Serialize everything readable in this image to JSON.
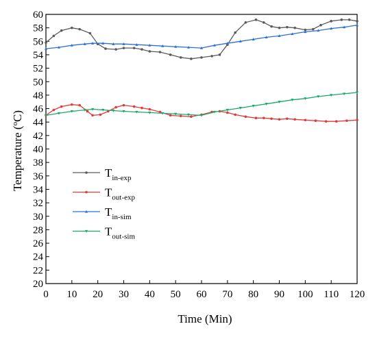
{
  "chart_data": {
    "type": "line",
    "xlabel": "Time (Min)",
    "ylabel": "Temperature (",
    "ylabel_sup": "o",
    "ylabel_unit": "C)",
    "xlim": [
      0,
      120
    ],
    "ylim": [
      20,
      60
    ],
    "x_ticks": [
      0,
      10,
      20,
      30,
      40,
      50,
      60,
      70,
      80,
      90,
      100,
      110,
      120
    ],
    "y_ticks": [
      20,
      22,
      24,
      26,
      28,
      30,
      32,
      34,
      36,
      38,
      40,
      42,
      44,
      46,
      48,
      50,
      52,
      54,
      56,
      58,
      60
    ],
    "grid": false,
    "legend_position": "center-left",
    "series": [
      {
        "name": "T",
        "subscript": "in-exp",
        "color": "#5a5a5a",
        "marker": "dot",
        "points": [
          [
            0,
            55.8
          ],
          [
            3,
            56.8
          ],
          [
            6,
            57.6
          ],
          [
            10,
            58.0
          ],
          [
            13,
            57.8
          ],
          [
            17,
            57.2
          ],
          [
            20,
            55.6
          ],
          [
            23,
            54.9
          ],
          [
            27,
            54.8
          ],
          [
            30,
            55.0
          ],
          [
            34,
            55.0
          ],
          [
            37,
            54.8
          ],
          [
            40,
            54.5
          ],
          [
            44,
            54.4
          ],
          [
            48,
            54.0
          ],
          [
            52,
            53.6
          ],
          [
            56,
            53.4
          ],
          [
            60,
            53.6
          ],
          [
            64,
            53.8
          ],
          [
            67,
            54.0
          ],
          [
            70,
            55.5
          ],
          [
            73,
            57.3
          ],
          [
            77,
            58.8
          ],
          [
            81,
            59.2
          ],
          [
            84,
            58.8
          ],
          [
            87,
            58.2
          ],
          [
            90,
            58.0
          ],
          [
            93,
            58.1
          ],
          [
            96,
            58.0
          ],
          [
            100,
            57.7
          ],
          [
            103,
            57.8
          ],
          [
            106,
            58.4
          ],
          [
            110,
            59.0
          ],
          [
            114,
            59.2
          ],
          [
            117,
            59.2
          ],
          [
            120,
            59.0
          ]
        ]
      },
      {
        "name": "T",
        "subscript": "out-exp",
        "color": "#e03a3a",
        "marker": "dot",
        "points": [
          [
            0,
            45.0
          ],
          [
            3,
            45.8
          ],
          [
            6,
            46.3
          ],
          [
            10,
            46.6
          ],
          [
            13,
            46.5
          ],
          [
            16,
            45.6
          ],
          [
            18,
            45.0
          ],
          [
            21,
            45.1
          ],
          [
            24,
            45.6
          ],
          [
            27,
            46.2
          ],
          [
            30,
            46.5
          ],
          [
            34,
            46.3
          ],
          [
            37,
            46.1
          ],
          [
            40,
            45.9
          ],
          [
            44,
            45.5
          ],
          [
            48,
            45.0
          ],
          [
            52,
            44.9
          ],
          [
            56,
            44.8
          ],
          [
            60,
            45.1
          ],
          [
            64,
            45.5
          ],
          [
            67,
            45.6
          ],
          [
            70,
            45.4
          ],
          [
            73,
            45.1
          ],
          [
            77,
            44.8
          ],
          [
            81,
            44.6
          ],
          [
            84,
            44.6
          ],
          [
            87,
            44.5
          ],
          [
            90,
            44.4
          ],
          [
            93,
            44.5
          ],
          [
            96,
            44.4
          ],
          [
            100,
            44.3
          ],
          [
            104,
            44.2
          ],
          [
            108,
            44.1
          ],
          [
            112,
            44.1
          ],
          [
            116,
            44.2
          ],
          [
            120,
            44.3
          ]
        ]
      },
      {
        "name": "T",
        "subscript": "in-sim",
        "color": "#2a6fd6",
        "marker": "triangle-up",
        "points": [
          [
            0,
            54.9
          ],
          [
            5,
            55.1
          ],
          [
            10,
            55.4
          ],
          [
            15,
            55.6
          ],
          [
            18,
            55.7
          ],
          [
            22,
            55.7
          ],
          [
            26,
            55.6
          ],
          [
            30,
            55.6
          ],
          [
            35,
            55.5
          ],
          [
            40,
            55.4
          ],
          [
            45,
            55.3
          ],
          [
            50,
            55.2
          ],
          [
            55,
            55.1
          ],
          [
            60,
            55.0
          ],
          [
            65,
            55.4
          ],
          [
            70,
            55.7
          ],
          [
            75,
            56.0
          ],
          [
            80,
            56.3
          ],
          [
            85,
            56.6
          ],
          [
            90,
            56.8
          ],
          [
            95,
            57.1
          ],
          [
            100,
            57.4
          ],
          [
            105,
            57.6
          ],
          [
            110,
            57.9
          ],
          [
            115,
            58.1
          ],
          [
            120,
            58.4
          ]
        ]
      },
      {
        "name": "T",
        "subscript": "out-sim",
        "color": "#1aa86a",
        "marker": "triangle-down",
        "points": [
          [
            0,
            45.0
          ],
          [
            5,
            45.3
          ],
          [
            10,
            45.6
          ],
          [
            15,
            45.8
          ],
          [
            18,
            45.9
          ],
          [
            22,
            45.8
          ],
          [
            26,
            45.7
          ],
          [
            30,
            45.6
          ],
          [
            35,
            45.5
          ],
          [
            40,
            45.4
          ],
          [
            45,
            45.3
          ],
          [
            50,
            45.2
          ],
          [
            55,
            45.1
          ],
          [
            60,
            45.0
          ],
          [
            65,
            45.5
          ],
          [
            70,
            45.8
          ],
          [
            75,
            46.1
          ],
          [
            80,
            46.4
          ],
          [
            85,
            46.7
          ],
          [
            90,
            47.0
          ],
          [
            95,
            47.3
          ],
          [
            100,
            47.5
          ],
          [
            105,
            47.8
          ],
          [
            110,
            48.0
          ],
          [
            115,
            48.2
          ],
          [
            120,
            48.4
          ]
        ]
      }
    ]
  }
}
